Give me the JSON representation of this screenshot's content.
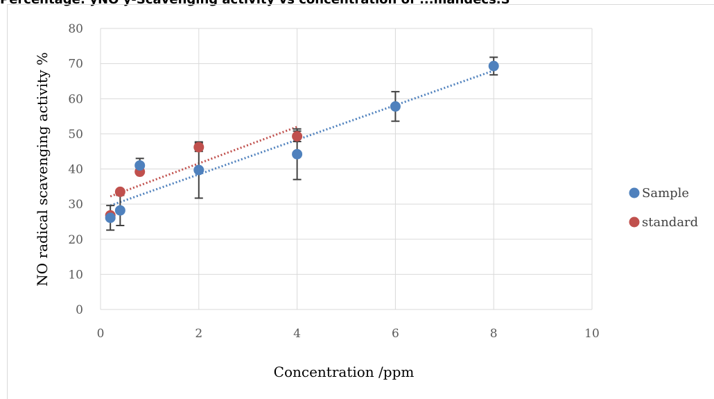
{
  "chart_data": {
    "type": "scatter",
    "title": "Percentage: yNO y-Scavenging activity vs concentration of ...mandecs.S",
    "xlabel": "Concentration /ppm",
    "ylabel": "NO radical scavenging activity %",
    "xlim": [
      0,
      10
    ],
    "ylim": [
      0,
      80
    ],
    "xticks": [
      0,
      2,
      4,
      6,
      8,
      10
    ],
    "yticks": [
      0,
      10,
      20,
      30,
      40,
      50,
      60,
      70,
      80
    ],
    "grid": true,
    "legend_position": "right",
    "series": [
      {
        "name": "Sample",
        "color": "#4f81bd",
        "x": [
          0.2,
          0.4,
          0.8,
          2,
          4,
          6,
          8
        ],
        "y": [
          26.1,
          28.2,
          41.0,
          39.7,
          44.2,
          57.8,
          69.3
        ],
        "error": [
          3.5,
          4.3,
          2.0,
          8.0,
          7.2,
          4.2,
          2.5
        ],
        "trendline": {
          "style": "dotted",
          "from": [
            0.2,
            29.6
          ],
          "to": [
            8,
            68.0
          ]
        }
      },
      {
        "name": "standard",
        "color": "#c0504d",
        "x": [
          0.2,
          0.4,
          0.8,
          2,
          4
        ],
        "y": [
          26.8,
          33.5,
          39.2,
          46.2,
          49.3
        ],
        "error": [
          0,
          0,
          0,
          1.2,
          1.5
        ],
        "trendline": {
          "style": "dotted",
          "from": [
            0.2,
            32.2
          ],
          "to": [
            4,
            52.0
          ]
        }
      }
    ]
  }
}
